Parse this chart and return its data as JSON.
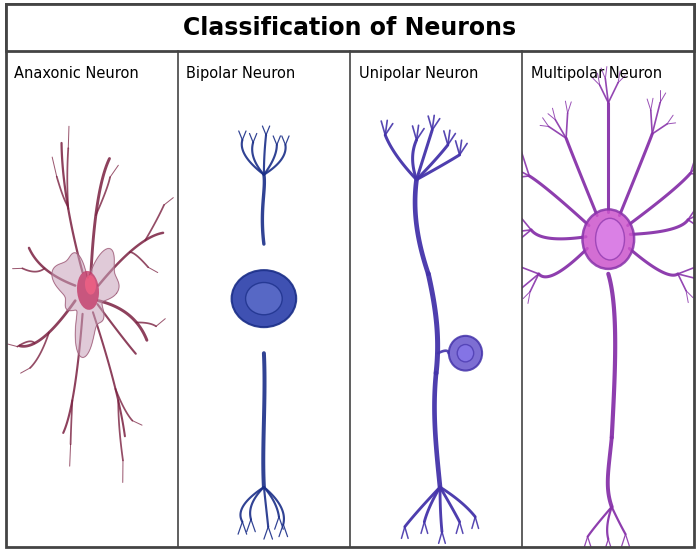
{
  "title": "Classification of Neurons",
  "title_fontsize": 17,
  "title_fontweight": "bold",
  "labels": [
    "Anaxonic Neuron",
    "Bipolar Neuron",
    "Unipolar Neuron",
    "Multipolar Neuron"
  ],
  "label_fontsize": 10.5,
  "background_color": "#ffffff",
  "border_color": "#444444",
  "anaxonic_color": "#7a2040",
  "anaxonic_soma_color": "#c03060",
  "anaxonic_body_color": "#c8a0b8",
  "bipolar_color": "#1a2e88",
  "bipolar_soma_color": "#2a3eaa",
  "bipolar_nucleus_color": "#6070cc",
  "unipolar_color": "#4433aa",
  "unipolar_soma_color": "#6655cc",
  "unipolar_nucleus_color": "#8877ee",
  "multipolar_color": "#8833aa",
  "multipolar_soma_color": "#cc55cc",
  "multipolar_nucleus_color": "#dd88ee"
}
